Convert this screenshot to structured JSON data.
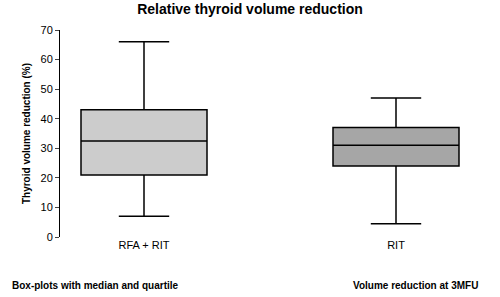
{
  "chart_data": {
    "type": "box",
    "title": "Relative thyroid volume reduction",
    "y_label": "Thyroid volume reduction (%)",
    "categories": [
      "RFA + RIT",
      "RIT"
    ],
    "min": [
      7,
      4.5
    ],
    "q1": [
      21,
      24
    ],
    "median": [
      32.5,
      31
    ],
    "q3": [
      43,
      37
    ],
    "max": [
      66,
      47
    ],
    "colors": [
      "#cccccc",
      "#a6a6a6"
    ],
    "annotations": [
      "Box-plots with median and quartile",
      "Volume reduction at 3MFU"
    ],
    "ylim": [
      0,
      70
    ],
    "yticks": [
      0,
      10,
      20,
      30,
      40,
      50,
      60,
      70
    ],
    "grid": false
  }
}
